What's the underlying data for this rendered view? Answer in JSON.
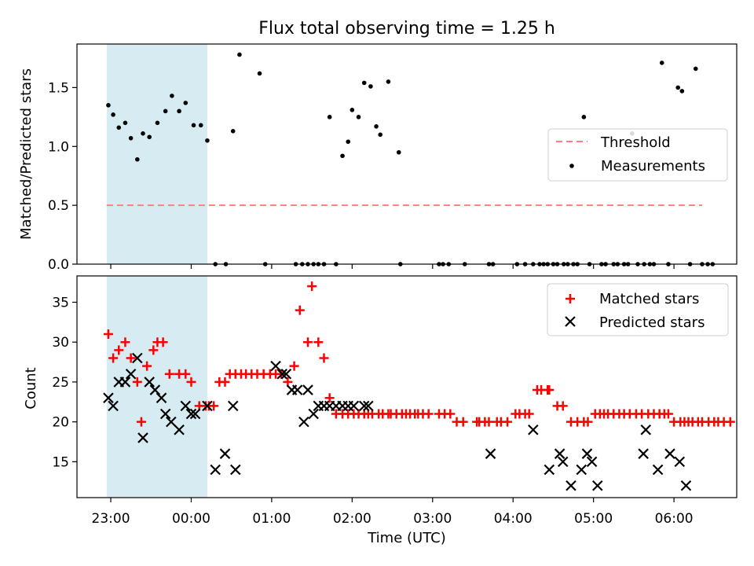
{
  "chart_data": [
    {
      "type": "scatter",
      "title": "Flux total observing time = 1.25 h",
      "xlabel": "",
      "ylabel": "Matched/Predicted stars",
      "xlim_hours": [
        -0.42,
        7.78
      ],
      "ylim": [
        0,
        1.87
      ],
      "yticks": [
        0.0,
        0.5,
        1.0,
        1.5
      ],
      "ytick_labels": [
        "0.0",
        "0.5",
        "1.0",
        "1.5"
      ],
      "highlight_span_hours": [
        -0.05,
        1.2
      ],
      "threshold": {
        "label": "Threshold",
        "value": 0.5,
        "x_range_hours": [
          -0.05,
          7.35
        ],
        "color": "#ff7f7f"
      },
      "legend": {
        "position": "center-right",
        "entries": [
          "Threshold",
          "Measurements"
        ]
      },
      "series": [
        {
          "name": "Measurements",
          "color": "#000000",
          "marker": "dot",
          "x_hours": [
            -0.03,
            0.03,
            0.1,
            0.18,
            0.25,
            0.33,
            0.4,
            0.48,
            0.58,
            0.68,
            0.76,
            0.85,
            0.93,
            1.03,
            1.12,
            1.2,
            1.3,
            1.43,
            1.52,
            1.6,
            1.85,
            1.92,
            2.3,
            2.38,
            2.45,
            2.52,
            2.58,
            2.65,
            2.72,
            2.8,
            2.88,
            2.95,
            3.0,
            3.08,
            3.15,
            3.23,
            3.3,
            3.35,
            3.45,
            3.58,
            3.6,
            4.08,
            4.13,
            4.2,
            4.4,
            4.7,
            4.75,
            5.05,
            5.15,
            5.25,
            5.33,
            5.38,
            5.43,
            5.5,
            5.55,
            5.63,
            5.68,
            5.75,
            5.8,
            5.88,
            5.95,
            6.1,
            6.15,
            6.25,
            6.3,
            6.38,
            6.43,
            6.48,
            6.55,
            6.63,
            6.7,
            6.75,
            6.85,
            6.93,
            7.05,
            7.1,
            7.2,
            7.27,
            7.35,
            7.42,
            7.48
          ],
          "y": [
            1.35,
            1.27,
            1.16,
            1.2,
            1.07,
            0.89,
            1.11,
            1.08,
            1.2,
            1.3,
            1.43,
            1.3,
            1.37,
            1.18,
            1.18,
            1.05,
            0,
            0,
            1.13,
            1.78,
            1.62,
            0,
            0,
            0,
            0,
            0,
            0,
            0,
            1.25,
            0,
            0.92,
            1.04,
            1.31,
            1.25,
            1.54,
            1.51,
            1.17,
            1.1,
            1.55,
            0.95,
            0,
            0,
            0,
            0,
            0,
            0,
            0,
            0,
            0,
            0,
            0,
            0,
            0,
            0,
            0,
            0,
            0,
            0,
            0,
            1.25,
            0,
            0,
            0,
            0,
            0,
            0,
            0,
            1.11,
            0,
            0,
            0,
            0,
            1.71,
            0,
            1.5,
            1.47,
            0,
            1.66,
            0,
            0,
            0
          ]
        }
      ]
    },
    {
      "type": "scatter",
      "title": "",
      "xlabel": "Time (UTC)",
      "ylabel": "Count",
      "xlim_hours": [
        -0.42,
        7.78
      ],
      "ylim": [
        10.5,
        38.3
      ],
      "yticks": [
        15,
        20,
        25,
        30,
        35
      ],
      "ytick_labels": [
        "15",
        "20",
        "25",
        "30",
        "35"
      ],
      "xticks_hours": [
        0,
        1,
        2,
        3,
        4,
        5,
        6,
        7
      ],
      "xtick_labels": [
        "23:00",
        "00:00",
        "01:00",
        "02:00",
        "03:00",
        "04:00",
        "05:00",
        "06:00"
      ],
      "highlight_span_hours": [
        -0.05,
        1.2
      ],
      "legend": {
        "position": "top-right",
        "entries": [
          "Matched stars",
          "Predicted stars"
        ]
      },
      "series": [
        {
          "name": "Matched stars",
          "color": "#ff0000",
          "marker": "plus",
          "x_hours": [
            -0.03,
            0.03,
            0.1,
            0.18,
            0.25,
            0.33,
            0.38,
            0.45,
            0.53,
            0.58,
            0.65,
            0.73,
            0.85,
            0.93,
            1.0,
            1.1,
            1.18,
            1.22,
            1.28,
            1.35,
            1.42,
            1.48,
            1.55,
            1.62,
            1.68,
            1.75,
            1.82,
            1.9,
            1.98,
            2.05,
            2.12,
            2.2,
            2.28,
            2.35,
            2.45,
            2.5,
            2.58,
            2.65,
            2.72,
            2.8,
            2.88,
            2.95,
            3.02,
            3.08,
            3.15,
            3.2,
            3.25,
            3.33,
            3.38,
            3.45,
            3.48,
            3.55,
            3.62,
            3.67,
            3.72,
            3.78,
            3.82,
            3.88,
            3.95,
            4.08,
            4.15,
            4.22,
            4.3,
            4.38,
            4.55,
            4.58,
            4.65,
            4.7,
            4.8,
            4.85,
            4.93,
            5.03,
            5.08,
            5.15,
            5.2,
            5.3,
            5.35,
            5.43,
            5.45,
            5.55,
            5.62,
            5.72,
            5.8,
            5.88,
            5.93,
            6.02,
            6.08,
            6.13,
            6.18,
            6.25,
            6.32,
            6.38,
            6.45,
            6.53,
            6.6,
            6.68,
            6.75,
            6.82,
            6.88,
            6.93,
            7.0,
            7.08,
            7.13,
            7.18,
            7.23,
            7.3,
            7.35,
            7.43,
            7.5,
            7.55,
            7.62,
            7.7
          ],
          "y": [
            31,
            28,
            29,
            30,
            28,
            25,
            20,
            27,
            29,
            30,
            30,
            26,
            26,
            26,
            25,
            22,
            22,
            22,
            22,
            25,
            25,
            26,
            26,
            26,
            26,
            26,
            26,
            26,
            26,
            26,
            26,
            25,
            27,
            34,
            30,
            37,
            30,
            28,
            23,
            21,
            21,
            21,
            21,
            21,
            21,
            21,
            21,
            21,
            21,
            21,
            21,
            21,
            21,
            21,
            21,
            21,
            21,
            21,
            21,
            21,
            21,
            21,
            20,
            20,
            20,
            20,
            20,
            20,
            20,
            20,
            20,
            21,
            21,
            21,
            21,
            24,
            24,
            24,
            24,
            22,
            22,
            20,
            20,
            20,
            20,
            21,
            21,
            21,
            21,
            21,
            21,
            21,
            21,
            21,
            21,
            21,
            21,
            21,
            21,
            21,
            20,
            20,
            20,
            20,
            20,
            20,
            20,
            20,
            20,
            20,
            20,
            20
          ],
          "x_hours_note": "approximate; red plus markers along the lower panel"
        },
        {
          "name": "Predicted stars",
          "color": "#000000",
          "marker": "x",
          "x_hours": [
            -0.03,
            0.03,
            0.1,
            0.18,
            0.25,
            0.33,
            0.4,
            0.48,
            0.55,
            0.63,
            0.68,
            0.75,
            0.85,
            0.93,
            1.0,
            1.05,
            1.2,
            1.3,
            1.42,
            1.52,
            1.55,
            2.05,
            2.13,
            2.18,
            2.25,
            2.32,
            2.4,
            2.45,
            2.52,
            2.58,
            2.65,
            2.72,
            2.8,
            2.88,
            2.95,
            3.02,
            3.15,
            3.2,
            4.72,
            5.25,
            5.45,
            5.58,
            5.62,
            5.72,
            5.85,
            5.92,
            5.98,
            6.05,
            6.62,
            6.65,
            6.8,
            6.95,
            7.07,
            7.15
          ],
          "y": [
            23,
            22,
            25,
            25,
            26,
            28,
            18,
            25,
            24,
            23,
            21,
            20,
            19,
            22,
            21,
            21,
            22,
            14,
            16,
            22,
            14,
            27,
            26,
            26,
            24,
            24,
            20,
            24,
            21,
            22,
            22,
            22,
            22,
            22,
            22,
            22,
            22,
            22,
            16,
            19,
            14,
            16,
            15,
            12,
            14,
            16,
            15,
            12,
            16,
            19,
            14,
            16,
            15,
            12
          ]
        }
      ]
    }
  ]
}
